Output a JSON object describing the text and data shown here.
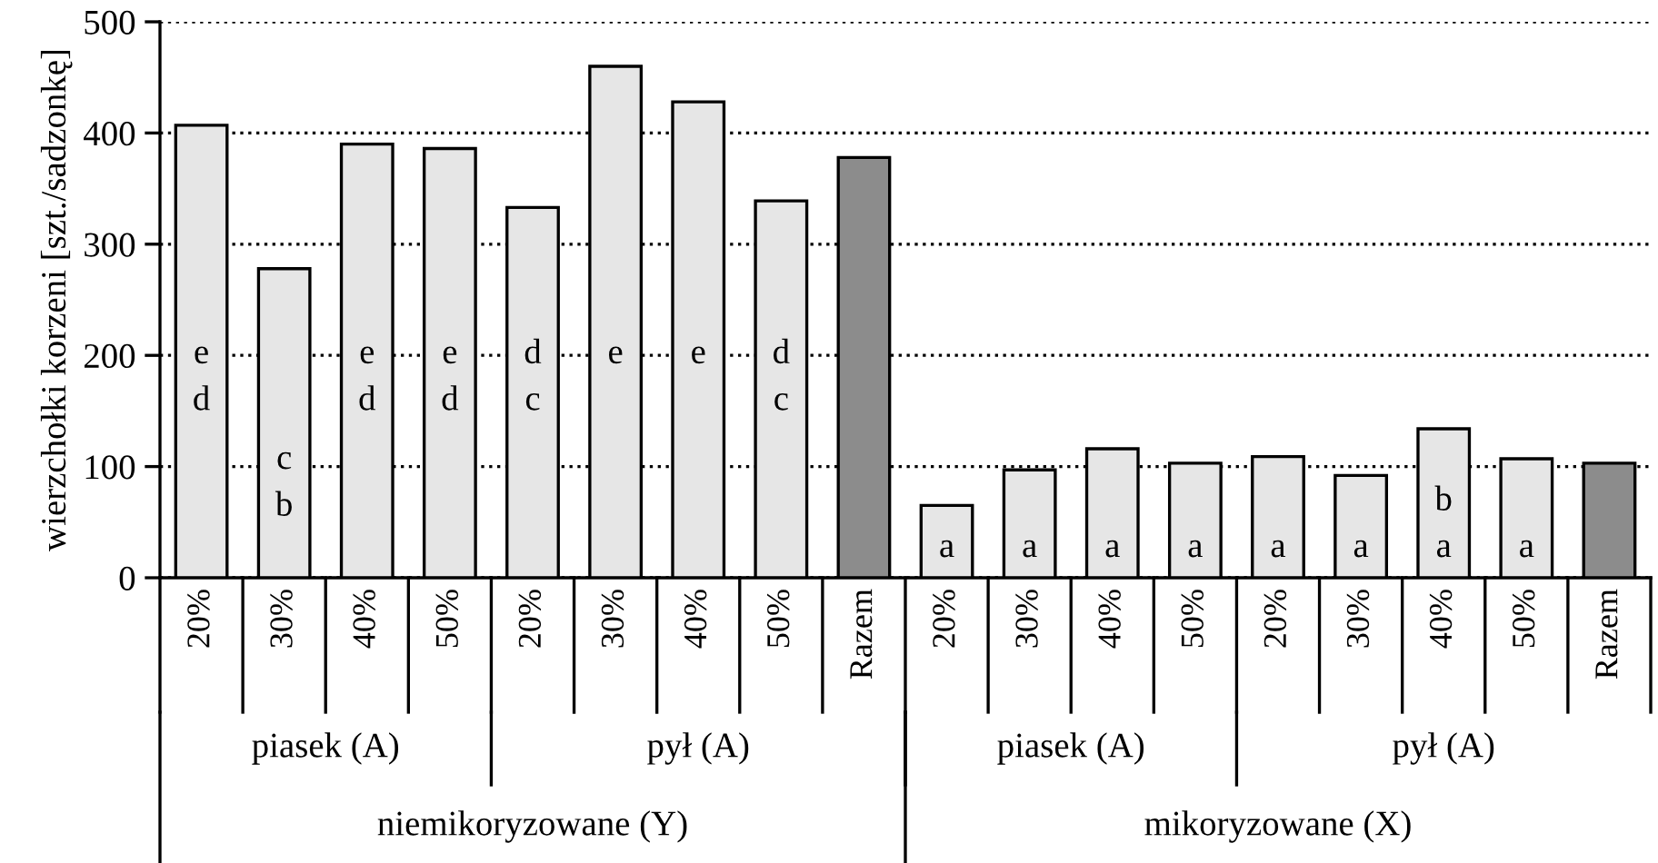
{
  "chart_data": {
    "type": "bar",
    "ylabel": "wierzchołki korzeni [szt./sadzonkę]",
    "categories": [
      "20%",
      "30%",
      "40%",
      "50%",
      "20%",
      "30%",
      "40%",
      "50%",
      "Razem",
      "20%",
      "30%",
      "40%",
      "50%",
      "20%",
      "30%",
      "40%",
      "50%",
      "Razem"
    ],
    "values": [
      407,
      278,
      390,
      386,
      333,
      460,
      428,
      339,
      378,
      65,
      97,
      116,
      103,
      109,
      92,
      134,
      107,
      103
    ],
    "colors": [
      "#e6e6e6",
      "#e6e6e6",
      "#e6e6e6",
      "#e6e6e6",
      "#e6e6e6",
      "#e6e6e6",
      "#e6e6e6",
      "#e6e6e6",
      "#8c8c8c",
      "#e6e6e6",
      "#e6e6e6",
      "#e6e6e6",
      "#e6e6e6",
      "#e6e6e6",
      "#e6e6e6",
      "#e6e6e6",
      "#e6e6e6",
      "#8c8c8c"
    ],
    "value_labels": [
      "e\nd",
      "c\nb",
      "e\nd",
      "e\nd",
      "d\nc",
      "e",
      "e",
      "d\nc",
      null,
      "a",
      "a",
      "a",
      "a",
      "a",
      "a",
      "b\na",
      "a",
      null
    ],
    "annotations": [
      "piasek (A)",
      "pył (A)",
      "piasek (A)",
      "pył (A)",
      "niemikoryzowane (Y)",
      "mikoryzowane (X)"
    ],
    "ylim": [
      0,
      500
    ],
    "yticks": [
      0,
      100,
      200,
      300,
      400,
      500
    ],
    "grid": "y",
    "line_style": "dotted"
  }
}
